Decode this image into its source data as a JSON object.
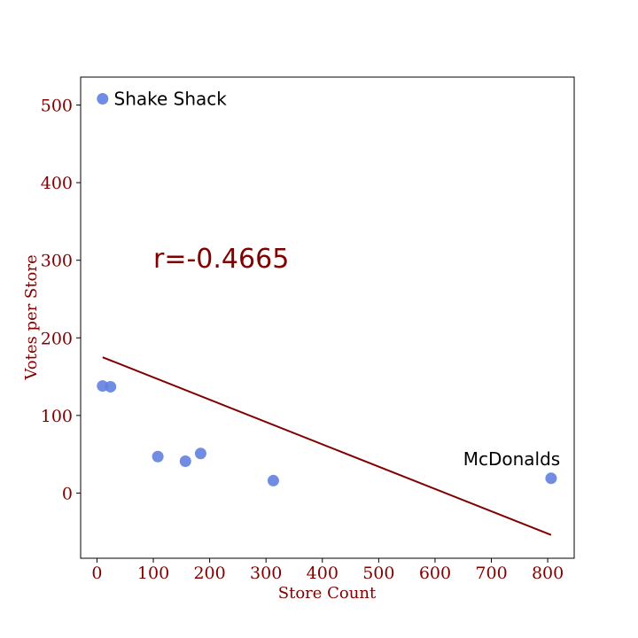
{
  "chart_data": {
    "type": "scatter",
    "xlabel": "Store Count",
    "ylabel": "Votes per Store",
    "xlim": [
      -29,
      847
    ],
    "ylim": [
      -84,
      536
    ],
    "xticks": [
      0,
      100,
      200,
      300,
      400,
      500,
      600,
      700,
      800
    ],
    "yticks": [
      0,
      100,
      200,
      300,
      400,
      500
    ],
    "points": [
      {
        "x": 10,
        "y": 508
      },
      {
        "x": 10,
        "y": 138
      },
      {
        "x": 24,
        "y": 137
      },
      {
        "x": 108,
        "y": 47
      },
      {
        "x": 157,
        "y": 41
      },
      {
        "x": 184,
        "y": 51
      },
      {
        "x": 313,
        "y": 16
      },
      {
        "x": 806,
        "y": 19
      }
    ],
    "point_color": "#6080e0",
    "trend_line": {
      "x1": 10,
      "y1": 175,
      "x2": 806,
      "y2": -54,
      "color": "#800000"
    },
    "annotations": [
      {
        "text": "Shake Shack",
        "x": 30,
        "y": 508
      },
      {
        "text": "McDonalds",
        "x": 650,
        "y": 44
      }
    ],
    "correlation_label": {
      "text": "r=-0.4665",
      "x": 100,
      "y": 302
    },
    "grid": false
  }
}
